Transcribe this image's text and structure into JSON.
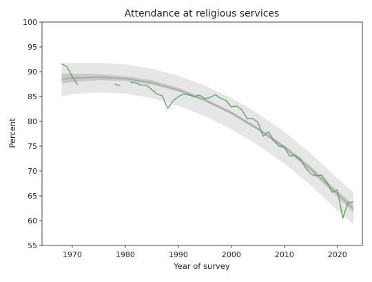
{
  "chart_data": {
    "type": "line",
    "title": "Attendance at religious services",
    "xlabel": "Year of survey",
    "ylabel": "Percent",
    "xlim": [
      1964.3,
      2024.7
    ],
    "ylim": [
      55,
      100
    ],
    "xticks": [
      1970,
      1980,
      1990,
      2000,
      2010,
      2020
    ],
    "yticks": [
      55,
      60,
      65,
      70,
      75,
      80,
      85,
      90,
      95,
      100
    ],
    "grid": false,
    "legend": "none",
    "colors": {
      "observed": "#5aa85a",
      "fit": "#a6a6a6",
      "inner_band": "#c8c8c8",
      "outer_band": "#e6e6e6",
      "axes": "#333333"
    },
    "series": [
      {
        "role": "observed",
        "segments": [
          {
            "x": [
              1968,
              1969,
              1970,
              1971
            ],
            "y": [
              91.6,
              91.0,
              89.0,
              87.4
            ]
          },
          {
            "x": [
              1978,
              1979
            ],
            "y": [
              87.5,
              87.2
            ]
          },
          {
            "x": [
              1981,
              1982,
              1983,
              1984,
              1985,
              1986,
              1987,
              1988,
              1989,
              1990,
              1991,
              1992,
              1993,
              1994,
              1995,
              1996,
              1997,
              1998,
              1999,
              2000,
              2001,
              2002,
              2003,
              2004,
              2005,
              2006,
              2007,
              2008,
              2009,
              2010,
              2011,
              2012,
              2013,
              2014,
              2015,
              2016,
              2017,
              2018,
              2019,
              2020,
              2021,
              2022,
              2023
            ],
            "y": [
              87.9,
              87.7,
              87.3,
              87.3,
              86.4,
              85.5,
              85.1,
              82.6,
              84.1,
              85.0,
              85.5,
              85.3,
              85.0,
              85.3,
              84.6,
              84.8,
              85.4,
              84.6,
              84.2,
              82.9,
              83.1,
              82.3,
              80.5,
              80.6,
              79.8,
              77.0,
              77.9,
              76.1,
              75.0,
              74.8,
              73.0,
              73.2,
              72.5,
              70.6,
              69.4,
              69.0,
              69.2,
              67.8,
              65.7,
              66.2,
              60.5,
              63.6,
              63.8
            ]
          }
        ]
      },
      {
        "role": "fit",
        "x": [
          1968,
          1970,
          1975,
          1980,
          1985,
          1990,
          1995,
          2000,
          2005,
          2010,
          2015,
          2020,
          2023
        ],
        "y": [
          88.5,
          88.7,
          88.9,
          88.6,
          87.8,
          86.3,
          84.3,
          81.7,
          78.5,
          74.8,
          70.4,
          65.4,
          62.4
        ],
        "inner_lower": [
          87.6,
          87.9,
          88.3,
          88.1,
          87.4,
          86.0,
          84.0,
          81.4,
          78.2,
          74.4,
          69.9,
          64.8,
          61.5
        ],
        "inner_upper": [
          89.6,
          89.6,
          89.5,
          89.1,
          88.3,
          86.8,
          84.6,
          82.0,
          78.8,
          75.2,
          70.9,
          66.0,
          63.3
        ],
        "outer_lower": [
          85.0,
          85.5,
          85.8,
          85.6,
          84.7,
          83.1,
          81.1,
          78.4,
          75.2,
          71.5,
          67.1,
          62.0,
          59.3
        ],
        "outer_upper": [
          91.7,
          91.8,
          91.8,
          91.5,
          90.6,
          89.2,
          87.2,
          84.7,
          81.6,
          77.9,
          73.5,
          68.6,
          65.7
        ]
      }
    ]
  }
}
